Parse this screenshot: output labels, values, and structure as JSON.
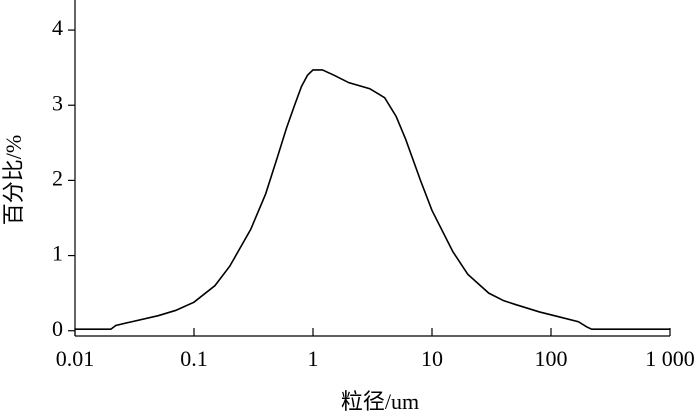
{
  "chart_data": {
    "type": "line",
    "x_label": "粒径/um",
    "y_label": "百分比/%",
    "x_scale": "log",
    "color": "#000000",
    "xlim": [
      0.01,
      1000
    ],
    "xticks": [
      0.01,
      0.1,
      1,
      10,
      100,
      {
        "value": 1000,
        "label": "1 000"
      }
    ],
    "ylim": [
      -0.07,
      4.4
    ],
    "yticks": [
      0,
      1,
      2,
      3,
      4
    ],
    "x": [
      0.01,
      0.02,
      0.022,
      0.03,
      0.05,
      0.07,
      0.1,
      0.15,
      0.2,
      0.3,
      0.4,
      0.5,
      0.6,
      0.7,
      0.8,
      0.9,
      1.0,
      1.2,
      1.5,
      2,
      3,
      4,
      5,
      6,
      8,
      10,
      15,
      20,
      30,
      40,
      50,
      80,
      120,
      170,
      200,
      220,
      1000
    ],
    "values": [
      0.02,
      0.02,
      0.07,
      0.12,
      0.2,
      0.27,
      0.38,
      0.6,
      0.86,
      1.35,
      1.82,
      2.3,
      2.7,
      3.0,
      3.25,
      3.4,
      3.47,
      3.47,
      3.4,
      3.3,
      3.22,
      3.1,
      2.85,
      2.55,
      2.0,
      1.6,
      1.05,
      0.75,
      0.5,
      0.4,
      0.35,
      0.25,
      0.18,
      0.12,
      0.05,
      0.02,
      0.02
    ]
  }
}
